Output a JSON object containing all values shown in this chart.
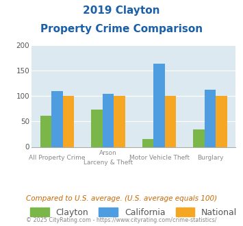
{
  "title_line1": "2019 Clayton",
  "title_line2": "Property Crime Comparison",
  "cat_labels_row1": [
    "All Property Crime",
    "Arson",
    "Motor Vehicle Theft",
    "Burglary"
  ],
  "cat_labels_row2": [
    "",
    "Larceny & Theft",
    "",
    ""
  ],
  "clayton": [
    61,
    74,
    15,
    35
  ],
  "california": [
    110,
    104,
    163,
    113
  ],
  "national": [
    100,
    100,
    100,
    100
  ],
  "bar_colors": {
    "clayton": "#7ab648",
    "california": "#4d9de0",
    "national": "#f5a623"
  },
  "ylim": [
    0,
    200
  ],
  "yticks": [
    0,
    50,
    100,
    150,
    200
  ],
  "background_color": "#dce9f0",
  "title_color": "#1a5fa8",
  "label_color": "#888888",
  "footer_note": "Compared to U.S. average. (U.S. average equals 100)",
  "footer_credit": "© 2025 CityRating.com - https://www.cityrating.com/crime-statistics/",
  "footer_note_color": "#cc6600",
  "footer_credit_color": "#888888",
  "legend_labels": [
    "Clayton",
    "California",
    "National"
  ]
}
